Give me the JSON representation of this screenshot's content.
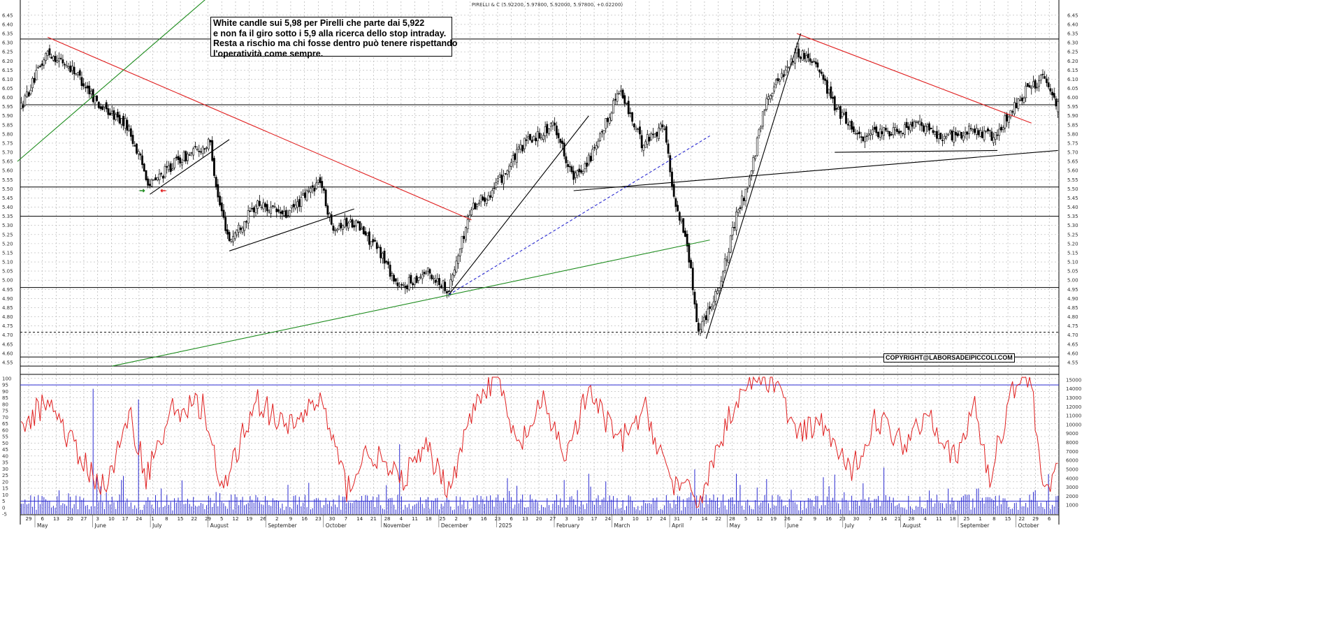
{
  "chart_title": "PIRELLI & C (5.92200, 5.97800, 5.92000, 5.97800, +0.02200)",
  "annotation": [
    "White candle sui 5,98 per Pirelli che parte dai 5,922",
    "e non fa il giro sotto i 5,9 alla ricerca dello stop intraday.",
    "Resta a rischio ma chi fosse dentro può tenere rispettando",
    "l'operatività come sempre."
  ],
  "copyright": "COPYRIGHT@LABORSADEIPICCOLI.COM",
  "colors": {
    "candle": "#000000",
    "grid": "#b5b5b5",
    "resistance_trend": "#e02020",
    "support_trend": "#1e8c1e",
    "dashed_trend": "#2a2ad0",
    "oscillator": "#e02020",
    "volume": "#2a2ad0",
    "oscillator_level": "#2a2ad0"
  },
  "chart_data": [
    {
      "type": "candlestick",
      "title": "PIRELLI & C (5.92200, 5.97800, 5.92000, 5.97800, +0.02200)",
      "ylim": [
        4.5,
        6.48
      ],
      "yticks": [
        "6.45",
        "6.40",
        "6.35",
        "6.30",
        "6.25",
        "6.20",
        "6.15",
        "6.10",
        "6.05",
        "6.00",
        "5.95",
        "5.90",
        "5.85",
        "5.80",
        "5.75",
        "5.70",
        "5.65",
        "5.60",
        "5.55",
        "5.50",
        "5.45",
        "5.40",
        "5.35",
        "5.30",
        "5.25",
        "5.20",
        "5.15",
        "5.10",
        "5.05",
        "5.00",
        "4.95",
        "4.90",
        "4.85",
        "4.80",
        "4.75",
        "4.70",
        "4.65",
        "4.60",
        "4.55"
      ],
      "horizontal_levels": [
        6.32,
        5.96,
        5.51,
        5.35,
        4.96,
        4.58,
        4.53
      ],
      "dashed_levels": [
        4.715
      ],
      "last_bar": {
        "open": 5.922,
        "high": 5.978,
        "low": 5.92,
        "close": 5.978,
        "change": 0.022
      },
      "anchors": [
        {
          "d": 0,
          "p": 5.95
        },
        {
          "d": 14,
          "p": 6.25
        },
        {
          "d": 28,
          "p": 6.15
        },
        {
          "d": 42,
          "p": 5.95
        },
        {
          "d": 56,
          "p": 5.85
        },
        {
          "d": 68,
          "p": 5.52
        },
        {
          "d": 82,
          "p": 5.65
        },
        {
          "d": 100,
          "p": 5.75
        },
        {
          "d": 104,
          "p": 5.45
        },
        {
          "d": 110,
          "p": 5.22
        },
        {
          "d": 125,
          "p": 5.42
        },
        {
          "d": 140,
          "p": 5.35
        },
        {
          "d": 158,
          "p": 5.55
        },
        {
          "d": 164,
          "p": 5.3
        },
        {
          "d": 176,
          "p": 5.32
        },
        {
          "d": 190,
          "p": 5.15
        },
        {
          "d": 200,
          "p": 4.95
        },
        {
          "d": 214,
          "p": 5.05
        },
        {
          "d": 226,
          "p": 4.95
        },
        {
          "d": 238,
          "p": 5.4
        },
        {
          "d": 250,
          "p": 5.5
        },
        {
          "d": 266,
          "p": 5.75
        },
        {
          "d": 282,
          "p": 5.85
        },
        {
          "d": 292,
          "p": 5.55
        },
        {
          "d": 304,
          "p": 5.72
        },
        {
          "d": 316,
          "p": 6.05
        },
        {
          "d": 328,
          "p": 5.75
        },
        {
          "d": 340,
          "p": 5.85
        },
        {
          "d": 344,
          "p": 5.5
        },
        {
          "d": 352,
          "p": 5.2
        },
        {
          "d": 358,
          "p": 4.72
        },
        {
          "d": 370,
          "p": 5.0
        },
        {
          "d": 378,
          "p": 5.35
        },
        {
          "d": 385,
          "p": 5.55
        },
        {
          "d": 394,
          "p": 6.0
        },
        {
          "d": 410,
          "p": 6.25
        },
        {
          "d": 420,
          "p": 6.2
        },
        {
          "d": 430,
          "p": 5.95
        },
        {
          "d": 444,
          "p": 5.78
        },
        {
          "d": 460,
          "p": 5.82
        },
        {
          "d": 474,
          "p": 5.85
        },
        {
          "d": 488,
          "p": 5.78
        },
        {
          "d": 502,
          "p": 5.82
        },
        {
          "d": 516,
          "p": 5.78
        },
        {
          "d": 520,
          "p": 5.88
        },
        {
          "d": 532,
          "p": 6.05
        },
        {
          "d": 540,
          "p": 6.1
        },
        {
          "d": 548,
          "p": 5.96
        }
      ],
      "trendlines": [
        {
          "color": "resistance_trend",
          "from": {
            "d": 14,
            "p": 6.33
          },
          "to": {
            "d": 238,
            "p": 5.33
          }
        },
        {
          "color": "resistance_trend",
          "from": {
            "d": 410,
            "p": 6.35
          },
          "to": {
            "d": 534,
            "p": 5.86
          }
        },
        {
          "color": "support_trend",
          "from": {
            "d": -2,
            "p": 5.65
          },
          "to": {
            "d": 100,
            "p": 6.56
          }
        },
        {
          "color": "support_trend",
          "from": {
            "d": 48,
            "p": 4.53
          },
          "to": {
            "d": 364,
            "p": 5.22
          }
        },
        {
          "color": "candle",
          "from": {
            "d": 68,
            "p": 5.47
          },
          "to": {
            "d": 110,
            "p": 5.77
          }
        },
        {
          "color": "candle",
          "from": {
            "d": 110,
            "p": 5.16
          },
          "to": {
            "d": 176,
            "p": 5.39
          }
        },
        {
          "color": "candle",
          "from": {
            "d": 226,
            "p": 4.92
          },
          "to": {
            "d": 300,
            "p": 5.9
          }
        },
        {
          "color": "candle",
          "from": {
            "d": 292,
            "p": 5.49
          },
          "to": {
            "d": 548,
            "p": 5.71
          }
        },
        {
          "color": "candle",
          "from": {
            "d": 430,
            "p": 5.7
          },
          "to": {
            "d": 516,
            "p": 5.71
          }
        },
        {
          "color": "candle",
          "from": {
            "d": 362,
            "p": 4.68
          },
          "to": {
            "d": 412,
            "p": 6.35
          }
        },
        {
          "color": "dashed_trend",
          "from": {
            "d": 226,
            "p": 4.92
          },
          "to": {
            "d": 364,
            "p": 5.79
          }
        }
      ],
      "arrows": [
        {
          "color": "support_trend",
          "d": 64,
          "p": 5.49,
          "direction": "right"
        },
        {
          "color": "resistance_trend",
          "d": 75,
          "p": 5.49,
          "direction": "left"
        }
      ]
    },
    {
      "type": "line_and_bar",
      "oscillator_ticks": [
        "100",
        "95",
        "90",
        "85",
        "80",
        "75",
        "70",
        "65",
        "60",
        "55",
        "50",
        "45",
        "40",
        "35",
        "30",
        "25",
        "20",
        "15",
        "10",
        "5",
        "0",
        "-5"
      ],
      "oscillator_ylim": [
        -5,
        101
      ],
      "oscillator_levels": [
        95,
        5
      ],
      "volume_ticks": [
        "15000",
        "14000",
        "13000",
        "12000",
        "11000",
        "10000",
        "9000",
        "8000",
        "7000",
        "6000",
        "5000",
        "4000",
        "3000",
        "2000",
        "1000"
      ],
      "volume_ylim": [
        0,
        15300
      ],
      "oscillator_anchors": [
        {
          "d": 0,
          "v": 60
        },
        {
          "d": 14,
          "v": 85
        },
        {
          "d": 30,
          "v": 40
        },
        {
          "d": 44,
          "v": 15
        },
        {
          "d": 58,
          "v": 70
        },
        {
          "d": 66,
          "v": 25
        },
        {
          "d": 80,
          "v": 75
        },
        {
          "d": 96,
          "v": 80
        },
        {
          "d": 106,
          "v": 10
        },
        {
          "d": 124,
          "v": 85
        },
        {
          "d": 140,
          "v": 60
        },
        {
          "d": 158,
          "v": 85
        },
        {
          "d": 172,
          "v": 15
        },
        {
          "d": 184,
          "v": 45
        },
        {
          "d": 200,
          "v": 20
        },
        {
          "d": 214,
          "v": 45
        },
        {
          "d": 226,
          "v": 15
        },
        {
          "d": 242,
          "v": 90
        },
        {
          "d": 252,
          "v": 100
        },
        {
          "d": 262,
          "v": 45
        },
        {
          "d": 276,
          "v": 80
        },
        {
          "d": 288,
          "v": 40
        },
        {
          "d": 300,
          "v": 90
        },
        {
          "d": 316,
          "v": 50
        },
        {
          "d": 330,
          "v": 75
        },
        {
          "d": 344,
          "v": 20
        },
        {
          "d": 358,
          "v": 5
        },
        {
          "d": 378,
          "v": 85
        },
        {
          "d": 386,
          "v": 100
        },
        {
          "d": 398,
          "v": 100
        },
        {
          "d": 410,
          "v": 55
        },
        {
          "d": 424,
          "v": 65
        },
        {
          "d": 438,
          "v": 25
        },
        {
          "d": 452,
          "v": 70
        },
        {
          "d": 466,
          "v": 50
        },
        {
          "d": 480,
          "v": 75
        },
        {
          "d": 494,
          "v": 35
        },
        {
          "d": 504,
          "v": 80
        },
        {
          "d": 512,
          "v": 20
        },
        {
          "d": 524,
          "v": 95
        },
        {
          "d": 532,
          "v": 100
        },
        {
          "d": 534,
          "v": 95
        },
        {
          "d": 538,
          "v": 40
        },
        {
          "d": 542,
          "v": 15
        },
        {
          "d": 548,
          "v": 25
        }
      ],
      "volume_spikes": [
        {
          "d": 38,
          "v": 14000
        },
        {
          "d": 62,
          "v": 12800
        },
        {
          "d": 200,
          "v": 7800
        },
        {
          "d": 356,
          "v": 5000
        },
        {
          "d": 456,
          "v": 5200
        },
        {
          "d": 378,
          "v": 4500
        },
        {
          "d": 300,
          "v": 4500
        }
      ]
    }
  ],
  "x_axis": {
    "days": [
      "29",
      "6",
      "13",
      "20",
      "27",
      "3",
      "10",
      "17",
      "24",
      "1",
      "8",
      "15",
      "22",
      "29",
      "5",
      "12",
      "19",
      "26",
      "2",
      "9",
      "16",
      "23",
      "30",
      "7",
      "14",
      "21",
      "28",
      "4",
      "11",
      "18",
      "25",
      "2",
      "9",
      "16",
      "23",
      "6",
      "13",
      "20",
      "27",
      "3",
      "10",
      "17",
      "24",
      "3",
      "10",
      "17",
      "24",
      "31",
      "7",
      "14",
      "22",
      "28",
      "5",
      "12",
      "19",
      "26",
      "2",
      "9",
      "16",
      "23",
      "30",
      "7",
      "14",
      "21",
      "28",
      "4",
      "11",
      "18",
      "25",
      "1",
      "8",
      "15",
      "22",
      "29",
      "6"
    ],
    "months": [
      "May",
      "June",
      "July",
      "August",
      "September",
      "October",
      "November",
      "December",
      "2025",
      "February",
      "March",
      "April",
      "May",
      "June",
      "July",
      "August",
      "September",
      "October"
    ]
  }
}
